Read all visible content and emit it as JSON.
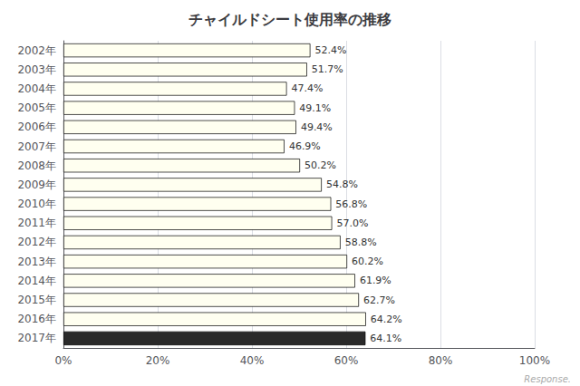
{
  "chart_data": {
    "type": "bar",
    "orientation": "horizontal",
    "title": "チャイルドシート使用率の推移",
    "categories": [
      "2002年",
      "2003年",
      "2004年",
      "2005年",
      "2006年",
      "2007年",
      "2008年",
      "2009年",
      "2010年",
      "2011年",
      "2012年",
      "2013年",
      "2014年",
      "2015年",
      "2016年",
      "2017年"
    ],
    "values": [
      52.4,
      51.7,
      47.4,
      49.1,
      49.4,
      46.9,
      50.2,
      54.8,
      56.8,
      57.0,
      58.8,
      60.2,
      61.9,
      62.7,
      64.2,
      64.1
    ],
    "value_labels": [
      "52.4%",
      "51.7%",
      "47.4%",
      "49.1%",
      "49.4%",
      "46.9%",
      "50.2%",
      "54.8%",
      "56.8%",
      "57.0%",
      "58.8%",
      "60.2%",
      "61.9%",
      "62.7%",
      "64.2%",
      "64.1%"
    ],
    "data_labels": true,
    "colors": [
      "#FFFFF0",
      "#FFFFF0",
      "#FFFFF0",
      "#FFFFF0",
      "#FFFFF0",
      "#FFFFF0",
      "#FFFFF0",
      "#FFFFF0",
      "#FFFFF0",
      "#FFFFF0",
      "#FFFFF0",
      "#FFFFF0",
      "#FFFFF0",
      "#FFFFF0",
      "#FFFFF0",
      "#2a2a2a"
    ],
    "xlim": [
      0,
      100
    ],
    "xticks": [
      {
        "value": 0,
        "label": "0%"
      },
      {
        "value": 20,
        "label": "20%"
      },
      {
        "value": 40,
        "label": "40%"
      },
      {
        "value": 60,
        "label": "60%"
      },
      {
        "value": 80,
        "label": "80%"
      },
      {
        "value": 100,
        "label": "100%"
      }
    ],
    "grid": true,
    "annotations": [
      "Response."
    ]
  }
}
